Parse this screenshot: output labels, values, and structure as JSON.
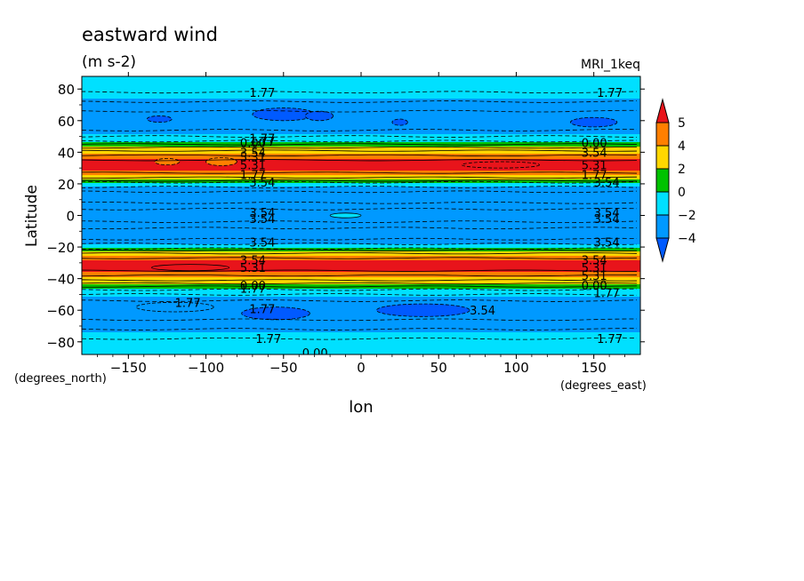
{
  "header": {
    "title": "eastward wind",
    "units": "(m s-2)",
    "dataset": "MRI_1keq"
  },
  "chart_data": {
    "type": "heatmap",
    "title": "eastward wind",
    "subtitle": "(m s-2)",
    "xlabel": "lon",
    "ylabel": "Latitude",
    "x_units": "(degrees_east)",
    "y_units": "(degrees_north)",
    "xlim": [
      -180,
      180
    ],
    "ylim": [
      -88,
      88
    ],
    "x_ticks": [
      -150,
      -100,
      -50,
      0,
      50,
      100,
      150
    ],
    "y_ticks": [
      -80,
      -60,
      -40,
      -20,
      0,
      20,
      40,
      60,
      80
    ],
    "x_tick_labels": [
      "−150",
      "−100",
      "−50",
      "0",
      "50",
      "100",
      "150"
    ],
    "y_tick_labels": [
      "−80",
      "−60",
      "−40",
      "−20",
      "0",
      "20",
      "40",
      "60",
      "80"
    ],
    "colorbar": {
      "labels": [
        "5",
        "4",
        "2",
        "0",
        "−2",
        "−4"
      ],
      "colors": [
        "#e8141b",
        "#ff7f00",
        "#ffd700",
        "#00c200",
        "#00e0ff",
        "#0099ff",
        "#005aff"
      ]
    },
    "band_profile": {
      "lat": [
        -88,
        -80,
        -70,
        -60,
        -54,
        -48,
        -45,
        -42,
        -38,
        -34,
        -30,
        -26,
        -22,
        -19,
        -15,
        -10,
        -3,
        0,
        3,
        10,
        15,
        19,
        22,
        26,
        30,
        34,
        38,
        42,
        45,
        48,
        54,
        60,
        70,
        80,
        88
      ],
      "value": [
        -1.0,
        -1.5,
        -2.3,
        -3.2,
        -2.8,
        -1.0,
        1.0,
        3.0,
        4.3,
        5.4,
        5.4,
        4.3,
        1.5,
        -1.8,
        -3.0,
        -3.4,
        -3.5,
        -3.5,
        -3.5,
        -3.4,
        -3.0,
        -1.8,
        1.5,
        4.3,
        5.4,
        5.4,
        4.3,
        3.0,
        1.0,
        -1.0,
        -2.8,
        -3.2,
        -2.3,
        -1.5,
        -1.0
      ]
    },
    "contour_labels": [
      "1.77",
      "1.77",
      "0.00",
      "1.77",
      "3.54",
      "3.54",
      "3.54",
      "3.54",
      "3.54",
      "3.54",
      "3.54",
      "3.54",
      "1.77",
      "1.77",
      "1.77",
      "1.77",
      "0.00",
      "0.00",
      "1.77",
      "1.77",
      "3.54",
      "3.54",
      "5.31",
      "5.31",
      "5.31",
      "5.31",
      "1.77",
      "1.77",
      "3.54",
      "3.54",
      "5.31",
      "5.31",
      "0.00",
      "0.00",
      "1.77",
      "3.54"
    ]
  }
}
